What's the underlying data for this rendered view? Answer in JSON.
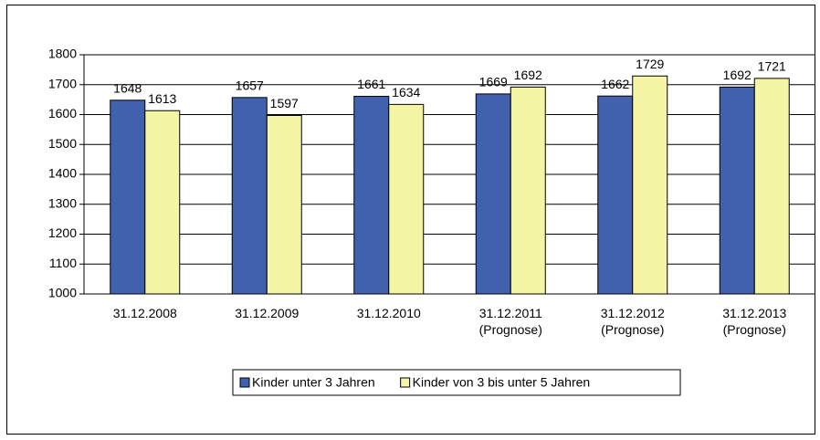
{
  "chart_data": {
    "type": "bar",
    "categories": [
      "31.12.2008",
      "31.12.2009",
      "31.12.2010",
      "31.12.2011\n(Prognose)",
      "31.12.2012\n(Prognose)",
      "31.12.2013\n(Prognose)"
    ],
    "series": [
      {
        "name": "Kinder unter 3 Jahren",
        "color": "#4160ae",
        "values": [
          1648,
          1657,
          1661,
          1669,
          1662,
          1692
        ]
      },
      {
        "name": "Kinder von 3 bis unter 5 Jahren",
        "color": "#f5f5a6",
        "values": [
          1613,
          1597,
          1634,
          1692,
          1729,
          1721
        ]
      }
    ],
    "ylim": [
      1000,
      1800
    ],
    "yticks": [
      1000,
      1100,
      1200,
      1300,
      1400,
      1500,
      1600,
      1700,
      1800
    ],
    "grid": true,
    "legend": "bottom"
  }
}
